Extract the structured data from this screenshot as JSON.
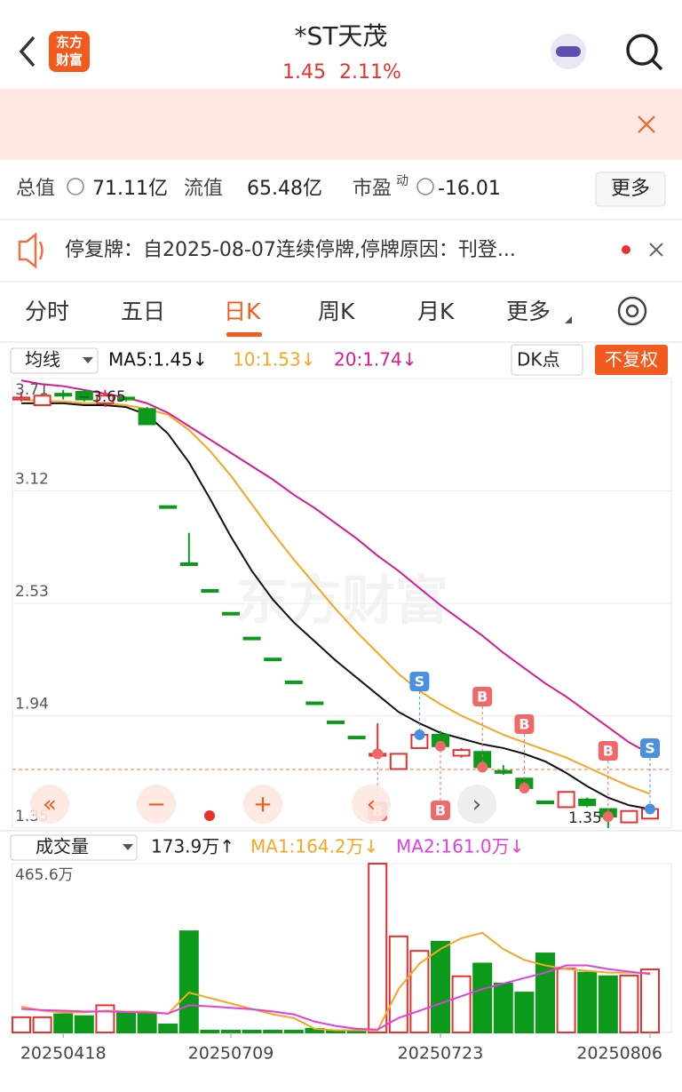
{
  "header": {
    "title": "*ST天茂",
    "price": "1.45",
    "change": "2.11%",
    "logo": [
      "东方",
      "财富"
    ]
  },
  "stats": {
    "total_label": "总值",
    "total": "71.11亿",
    "float_label": "流值",
    "float": "65.48亿",
    "pe_label": "市盈",
    "pe_sup": "动",
    "pe": "-16.01",
    "more": "更多"
  },
  "notice": {
    "text": "停复牌：自2025-08-07连续停牌,停牌原因：刊登..."
  },
  "tabs": [
    "分时",
    "五日",
    "日K",
    "周K",
    "月K",
    "更多"
  ],
  "toolbar": {
    "ma": "均线",
    "dk": "DK点",
    "adjust": "不复权"
  },
  "controls": [
    "«",
    "−",
    "+",
    "‹",
    "›"
  ],
  "watermark": "东方财富",
  "signals": [
    "S",
    "B",
    "B",
    "B",
    "S",
    "B",
    "B"
  ],
  "chart_data": [
    {
      "type": "candlestick",
      "ylim": [
        1.35,
        3.71
      ],
      "yticks": [
        3.71,
        3.12,
        2.53,
        1.94,
        1.35
      ],
      "open": [
        3.6,
        3.57,
        3.63,
        3.64,
        3.58,
        3.61,
        3.55,
        3.04,
        2.74,
        2.6,
        2.48,
        2.35,
        2.24,
        2.12,
        2.01,
        1.91,
        1.83,
        1.73,
        1.66,
        1.77,
        1.84,
        1.73,
        1.75,
        1.65,
        1.61,
        1.49,
        1.46,
        1.5,
        1.45,
        1.38,
        1.4
      ],
      "close": [
        3.61,
        3.62,
        3.62,
        3.6,
        3.62,
        3.6,
        3.47,
        3.04,
        2.74,
        2.6,
        2.48,
        2.35,
        2.24,
        2.12,
        2.01,
        1.91,
        1.83,
        1.74,
        1.74,
        1.84,
        1.78,
        1.76,
        1.67,
        1.64,
        1.56,
        1.48,
        1.54,
        1.47,
        1.41,
        1.44,
        1.45
      ],
      "high": [
        3.64,
        3.63,
        3.65,
        3.65,
        3.65,
        3.61,
        3.56,
        3.04,
        2.9,
        2.6,
        2.48,
        2.35,
        2.24,
        2.12,
        2.01,
        1.91,
        1.83,
        1.9,
        1.74,
        1.85,
        1.86,
        1.77,
        1.75,
        1.68,
        1.61,
        1.49,
        1.54,
        1.51,
        1.45,
        1.44,
        1.46
      ],
      "low": [
        3.59,
        3.57,
        3.6,
        3.59,
        3.56,
        3.59,
        3.47,
        3.04,
        2.74,
        2.6,
        2.48,
        2.35,
        2.24,
        2.12,
        2.01,
        1.91,
        1.83,
        1.72,
        1.66,
        1.77,
        1.77,
        1.72,
        1.66,
        1.63,
        1.56,
        1.48,
        1.46,
        1.46,
        1.35,
        1.38,
        1.4
      ],
      "up_color": "#e8312f",
      "down_color": "#0b9a1a",
      "high_value": 3.65,
      "low_value": 1.35,
      "series": [
        {
          "name": "MA5",
          "label": "MA5:1.45↓",
          "color": "#111111",
          "values": [
            3.58,
            3.58,
            3.58,
            3.57,
            3.57,
            3.56,
            3.52,
            3.42,
            3.27,
            3.08,
            2.88,
            2.7,
            2.55,
            2.43,
            2.33,
            2.23,
            2.14,
            2.05,
            1.96,
            1.9,
            1.85,
            1.82,
            1.79,
            1.77,
            1.74,
            1.7,
            1.64,
            1.57,
            1.51,
            1.47,
            1.45
          ]
        },
        {
          "name": "MA10",
          "label": "10:1.53↓",
          "color": "#f5a623",
          "values": [
            3.6,
            3.59,
            3.59,
            3.58,
            3.58,
            3.57,
            3.55,
            3.52,
            3.44,
            3.33,
            3.2,
            3.05,
            2.9,
            2.76,
            2.63,
            2.5,
            2.38,
            2.27,
            2.16,
            2.07,
            2.0,
            1.94,
            1.89,
            1.84,
            1.8,
            1.76,
            1.72,
            1.67,
            1.62,
            1.57,
            1.53
          ]
        },
        {
          "name": "MA20",
          "label": "20:1.74↓",
          "color": "#d81b8f",
          "values": [
            3.7,
            3.68,
            3.67,
            3.65,
            3.63,
            3.61,
            3.58,
            3.53,
            3.46,
            3.39,
            3.32,
            3.25,
            3.18,
            3.1,
            3.03,
            2.95,
            2.87,
            2.78,
            2.7,
            2.61,
            2.52,
            2.44,
            2.36,
            2.27,
            2.19,
            2.11,
            2.04,
            1.96,
            1.88,
            1.8,
            1.74
          ]
        }
      ]
    },
    {
      "type": "bar",
      "title": "成交量",
      "current": "173.9万↑",
      "categories": [
        null,
        null,
        "20250418",
        null,
        null,
        null,
        null,
        null,
        null,
        null,
        "20250709",
        null,
        null,
        null,
        null,
        null,
        null,
        null,
        null,
        null,
        "20250723",
        null,
        null,
        null,
        null,
        null,
        null,
        null,
        null,
        null,
        "20250806"
      ],
      "ylim": [
        0,
        465.6
      ],
      "yticks": [
        {
          "value": 465.6,
          "label": "465.6万"
        }
      ],
      "values": [
        42,
        42,
        50,
        45,
        75,
        55,
        55,
        22,
        279,
        5,
        5,
        5,
        5,
        5,
        10,
        5,
        5,
        465.6,
        265,
        225,
        250,
        155,
        190,
        135,
        110,
        218,
        176,
        165,
        155,
        157,
        173.9
      ],
      "series": [
        {
          "name": "MA1",
          "label": "MA1:164.2万↓",
          "color": "#f5a623",
          "values": [
            71,
            60,
            55,
            55,
            60,
            58,
            58,
            52,
            110,
            95,
            80,
            65,
            50,
            40,
            10,
            6,
            6,
            6,
            120,
            190,
            230,
            260,
            275,
            230,
            200,
            185,
            175,
            170,
            165,
            165,
            164.2
          ]
        },
        {
          "name": "MA2",
          "label": "MA2:161.0万↓",
          "color": "#e040e0",
          "values": [
            65,
            62,
            60,
            58,
            58,
            56,
            55,
            52,
            75,
            72,
            68,
            64,
            58,
            50,
            30,
            18,
            10,
            8,
            40,
            60,
            80,
            100,
            120,
            135,
            150,
            165,
            185,
            185,
            175,
            168,
            161.0
          ]
        }
      ]
    }
  ]
}
